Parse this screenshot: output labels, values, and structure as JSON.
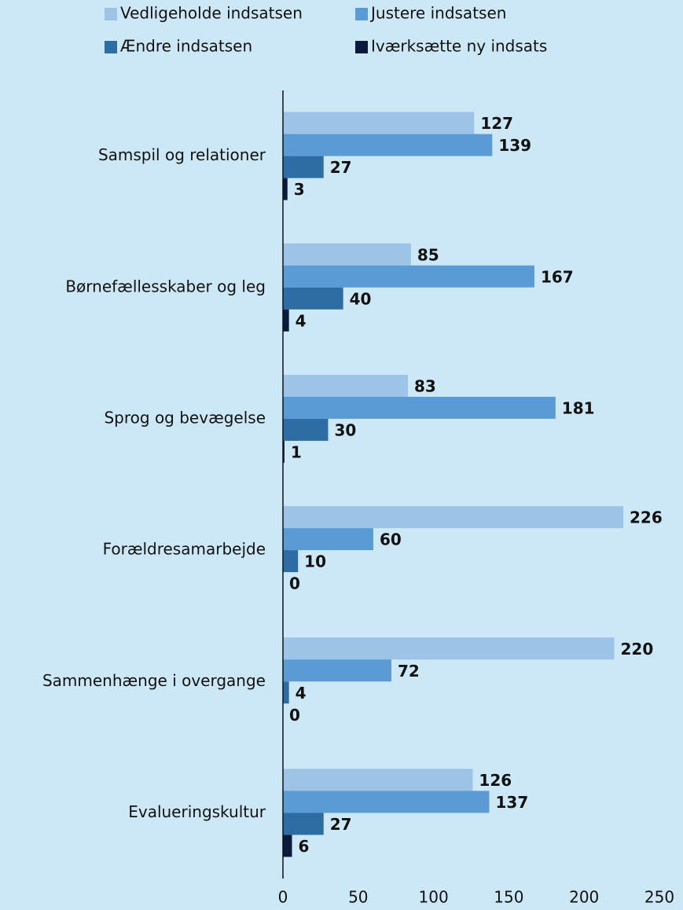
{
  "chart_data": {
    "type": "barh",
    "categories": [
      "Samspil og relationer",
      "Børnefællesskaber og leg",
      "Sprog og bevægelse",
      "Forældresamarbejde",
      "Sammenhænge i overgange",
      "Evalueringskultur"
    ],
    "series": [
      {
        "name": "Vedligeholde indsatsen",
        "color": "#9dc3e6",
        "values": [
          127,
          85,
          83,
          226,
          220,
          126
        ]
      },
      {
        "name": "Justere indsatsen",
        "color": "#5b9bd5",
        "values": [
          139,
          167,
          181,
          60,
          72,
          137
        ]
      },
      {
        "name": "Ændre indsatsen",
        "color": "#2e6ca4",
        "values": [
          27,
          40,
          30,
          10,
          4,
          27
        ]
      },
      {
        "name": "Iværksætte ny indsats",
        "color": "#0a1a3c",
        "values": [
          3,
          4,
          1,
          0,
          0,
          6
        ]
      }
    ],
    "xlim": [
      0,
      250
    ],
    "xticks": [
      0,
      50,
      100,
      150,
      200,
      250
    ]
  }
}
